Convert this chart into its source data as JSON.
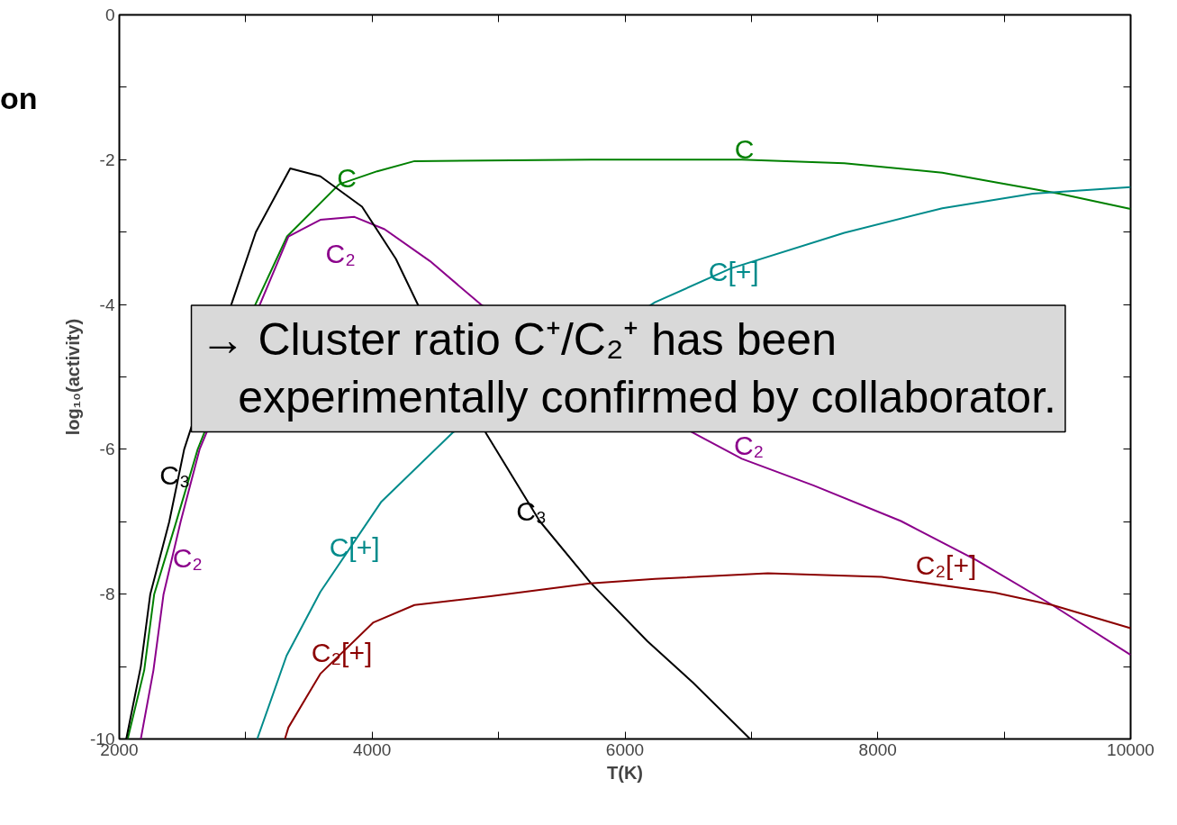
{
  "chart_data": {
    "type": "line",
    "title": "on",
    "xlabel": "T(K)",
    "ylabel": "log₁₀(activity)",
    "xlim": [
      2000,
      10000
    ],
    "ylim": [
      -10,
      0
    ],
    "xticks": [
      2000,
      {
        "value": 3000,
        "label": null
      },
      4000,
      {
        "value": 5000,
        "label": null
      },
      6000,
      {
        "value": 7000,
        "label": null
      },
      8000,
      {
        "value": 9000,
        "label": null
      },
      10000
    ],
    "yticks": [
      -10,
      {
        "value": -9,
        "label": null
      },
      -8,
      {
        "value": -7,
        "label": null
      },
      -6,
      {
        "value": -5,
        "label": null
      },
      -4,
      {
        "value": -3,
        "label": null
      },
      -2,
      {
        "value": -1,
        "label": null
      },
      0
    ],
    "grid": false,
    "line_style": "solid",
    "marker": "none",
    "series": [
      {
        "name": "C",
        "color": "#008000",
        "x": [
          2066,
          2197,
          2276,
          2440,
          2620,
          3076,
          3327,
          3739,
          4040,
          4335,
          5735,
          6925,
          7735,
          8510,
          8925,
          9435,
          10000
        ],
        "values": [
          -10,
          -9.05,
          -8,
          -7.06,
          -6,
          -4,
          -3.06,
          -2.34,
          -2.16,
          -2.02,
          -2.0,
          -2.0,
          -2.05,
          -2.18,
          -2.31,
          -2.47,
          -2.68
        ]
      },
      {
        "name": "C₂",
        "color": "#8b008b",
        "x": [
          2170,
          2270,
          2350,
          2485,
          2635,
          3112,
          3338,
          3590,
          3860,
          4098,
          4457,
          4860,
          6537,
          6925,
          7494,
          8183,
          8779,
          9380,
          10000
        ],
        "values": [
          -10,
          -9.05,
          -8,
          -7,
          -6,
          -4,
          -3.06,
          -2.83,
          -2.79,
          -2.96,
          -3.4,
          -4.0,
          -5.77,
          -6.13,
          -6.5,
          -6.99,
          -7.53,
          -8.15,
          -8.84
        ]
      },
      {
        "name": "C₃",
        "color": "#000000",
        "x": [
          2055,
          2170,
          2245,
          2395,
          2513,
          2886,
          3080,
          3352,
          3590,
          3920,
          4188,
          4367,
          4905,
          5325,
          5727,
          6178,
          6537,
          6990
        ],
        "values": [
          -10,
          -9,
          -8,
          -7,
          -6,
          -4,
          -3,
          -2.12,
          -2.23,
          -2.65,
          -3.37,
          -4.02,
          -5.79,
          -6.99,
          -7.84,
          -8.65,
          -9.22,
          -10
        ]
      },
      {
        "name": "C[+]",
        "color": "#008b8b",
        "x": [
          3091,
          3323,
          3590,
          4070,
          4636,
          6237,
          6840,
          7735,
          8510,
          9227,
          10000
        ],
        "values": [
          -10,
          -8.85,
          -7.97,
          -6.73,
          -5.77,
          -3.97,
          -3.5,
          -3.01,
          -2.67,
          -2.47,
          -2.38
        ]
      },
      {
        "name": "C₂[+]",
        "color": "#8b0000",
        "x": [
          3310,
          3338,
          3590,
          4010,
          4335,
          4936,
          5725,
          6237,
          7130,
          8030,
          8925,
          9380,
          10000
        ],
        "values": [
          -10,
          -9.84,
          -9.1,
          -8.39,
          -8.15,
          -8.03,
          -7.85,
          -7.79,
          -7.71,
          -7.76,
          -7.98,
          -8.15,
          -8.47
        ]
      }
    ],
    "annotations": [
      "→ Cluster ratio C⁺/C₂⁺ has been experimentally confirmed by collaborator.",
      "C",
      "C₂",
      "C₂",
      "C₃",
      "C[+]",
      "C₂[+]"
    ]
  }
}
